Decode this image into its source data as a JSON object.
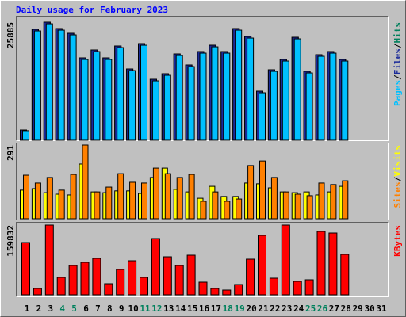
{
  "title": "Daily usage for February 2023",
  "categories": [
    "1",
    "2",
    "3",
    "4",
    "5",
    "6",
    "7",
    "8",
    "9",
    "10",
    "11",
    "12",
    "13",
    "14",
    "15",
    "16",
    "17",
    "18",
    "19",
    "20",
    "21",
    "22",
    "23",
    "24",
    "25",
    "26",
    "27",
    "28",
    "29",
    "30",
    "31"
  ],
  "category_colors": [
    "#000000",
    "#000000",
    "#000000",
    "#00805c",
    "#00805c",
    "#000000",
    "#000000",
    "#000000",
    "#000000",
    "#000000",
    "#00805c",
    "#00805c",
    "#000000",
    "#000000",
    "#000000",
    "#000000",
    "#000000",
    "#00805c",
    "#00805c",
    "#000000",
    "#000000",
    "#000000",
    "#000000",
    "#000000",
    "#00805c",
    "#00805c",
    "#000000",
    "#000000",
    "#000000",
    "#000000",
    "#000000"
  ],
  "legend_separator": "/",
  "chart_data": [
    {
      "type": "bar",
      "ylim": [
        0,
        25885
      ],
      "yticks": [
        25885
      ],
      "series": [
        {
          "name": "Hits",
          "color": "#00805c",
          "values": [
            2258,
            24320,
            25885,
            24490,
            23450,
            18065,
            19800,
            18065,
            20670,
            15630,
            21190,
            13375,
            14590,
            18930,
            16500,
            19455,
            20840,
            19455,
            24490,
            22755,
            10770,
            15460,
            17720,
            22580,
            15110,
            18760,
            19455,
            17720,
            null,
            null,
            null
          ]
        },
        {
          "name": "Files",
          "color": "#1a2a9a",
          "values": [
            2258,
            24320,
            25885,
            24490,
            23450,
            18065,
            19800,
            18065,
            20670,
            15630,
            21190,
            13375,
            14590,
            18930,
            16500,
            19455,
            20840,
            19455,
            24490,
            22755,
            10770,
            15460,
            17720,
            22580,
            15110,
            18760,
            19455,
            17720,
            null,
            null,
            null
          ]
        },
        {
          "name": "Pages",
          "color": "#00c0ff",
          "values": [
            2100,
            23970,
            25530,
            24140,
            23100,
            17715,
            19450,
            17715,
            20320,
            15280,
            20840,
            13025,
            14240,
            18580,
            16150,
            19105,
            20490,
            19105,
            24140,
            22405,
            10420,
            15110,
            17370,
            22230,
            14760,
            18410,
            19105,
            17370,
            null,
            null,
            null
          ]
        }
      ]
    },
    {
      "type": "bar",
      "ylim": [
        0,
        291
      ],
      "yticks": [
        291
      ],
      "series": [
        {
          "name": "Visits",
          "color": "#ffff00",
          "values": [
            113,
            119,
            103,
            97,
            94,
            216,
            106,
            103,
            110,
            110,
            100,
            163,
            200,
            116,
            106,
            81,
            128,
            88,
            88,
            141,
            138,
            122,
            106,
            103,
            106,
            94,
            106,
            128,
            null,
            null,
            null
          ]
        },
        {
          "name": "Sites",
          "color": "#ff8000",
          "values": [
            172,
            141,
            163,
            113,
            175,
            291,
            106,
            125,
            178,
            144,
            141,
            200,
            178,
            163,
            175,
            69,
            106,
            69,
            78,
            210,
            228,
            163,
            106,
            97,
            91,
            141,
            135,
            150,
            null,
            null,
            null
          ]
        }
      ]
    },
    {
      "type": "bar",
      "ylim": [
        0,
        159832
      ],
      "yticks": [
        159832
      ],
      "series": [
        {
          "name": "KBytes",
          "color": "#ff0000",
          "values": [
            119856,
            14528,
            159832,
            39952,
            67192,
            74456,
            83536,
            25424,
            58112,
            78088,
            39952,
            128936,
            87168,
            67192,
            90800,
            29056,
            14528,
            10896,
            23608,
            81720,
            136200,
            38136,
            159832,
            30872,
            34504,
            145280,
            141648,
            92616,
            null,
            null,
            null
          ]
        }
      ]
    }
  ]
}
